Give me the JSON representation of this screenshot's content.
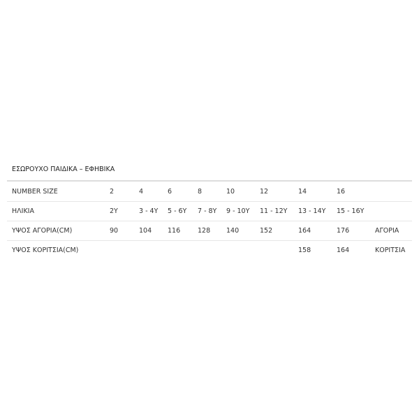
{
  "title": "ΕΣΩΡΟΥΧΟ ΠΑΙΔΙΚΑ – ΕΦΗΒΙΚΑ",
  "rows": [
    {
      "label": "NUMBER SIZE",
      "cells": [
        "2",
        "4",
        "6",
        "8",
        "10",
        "12",
        "14",
        "16",
        ""
      ]
    },
    {
      "label": "ΗΛΙΚΙΑ",
      "cells": [
        "2Y",
        "3 - 4Y",
        "5 - 6Y",
        "7 - 8Y",
        "9 - 10Y",
        "11 - 12Y",
        "13 - 14Y",
        "15 - 16Y",
        ""
      ]
    },
    {
      "label": "ΥΨΟΣ ΑΓΟΡΙΑ(CM)",
      "cells": [
        "90",
        "104",
        "116",
        "128",
        "140",
        "152",
        "164",
        "176",
        "ΑΓΟΡΙΑ"
      ]
    },
    {
      "label": "ΥΨΟΣ ΚΟΡΙΤΣΙΑ(CM)",
      "cells": [
        "",
        "",
        "",
        "",
        "",
        "",
        "158",
        "164",
        "ΚΟΡΙΤΣΙΑ"
      ]
    }
  ]
}
